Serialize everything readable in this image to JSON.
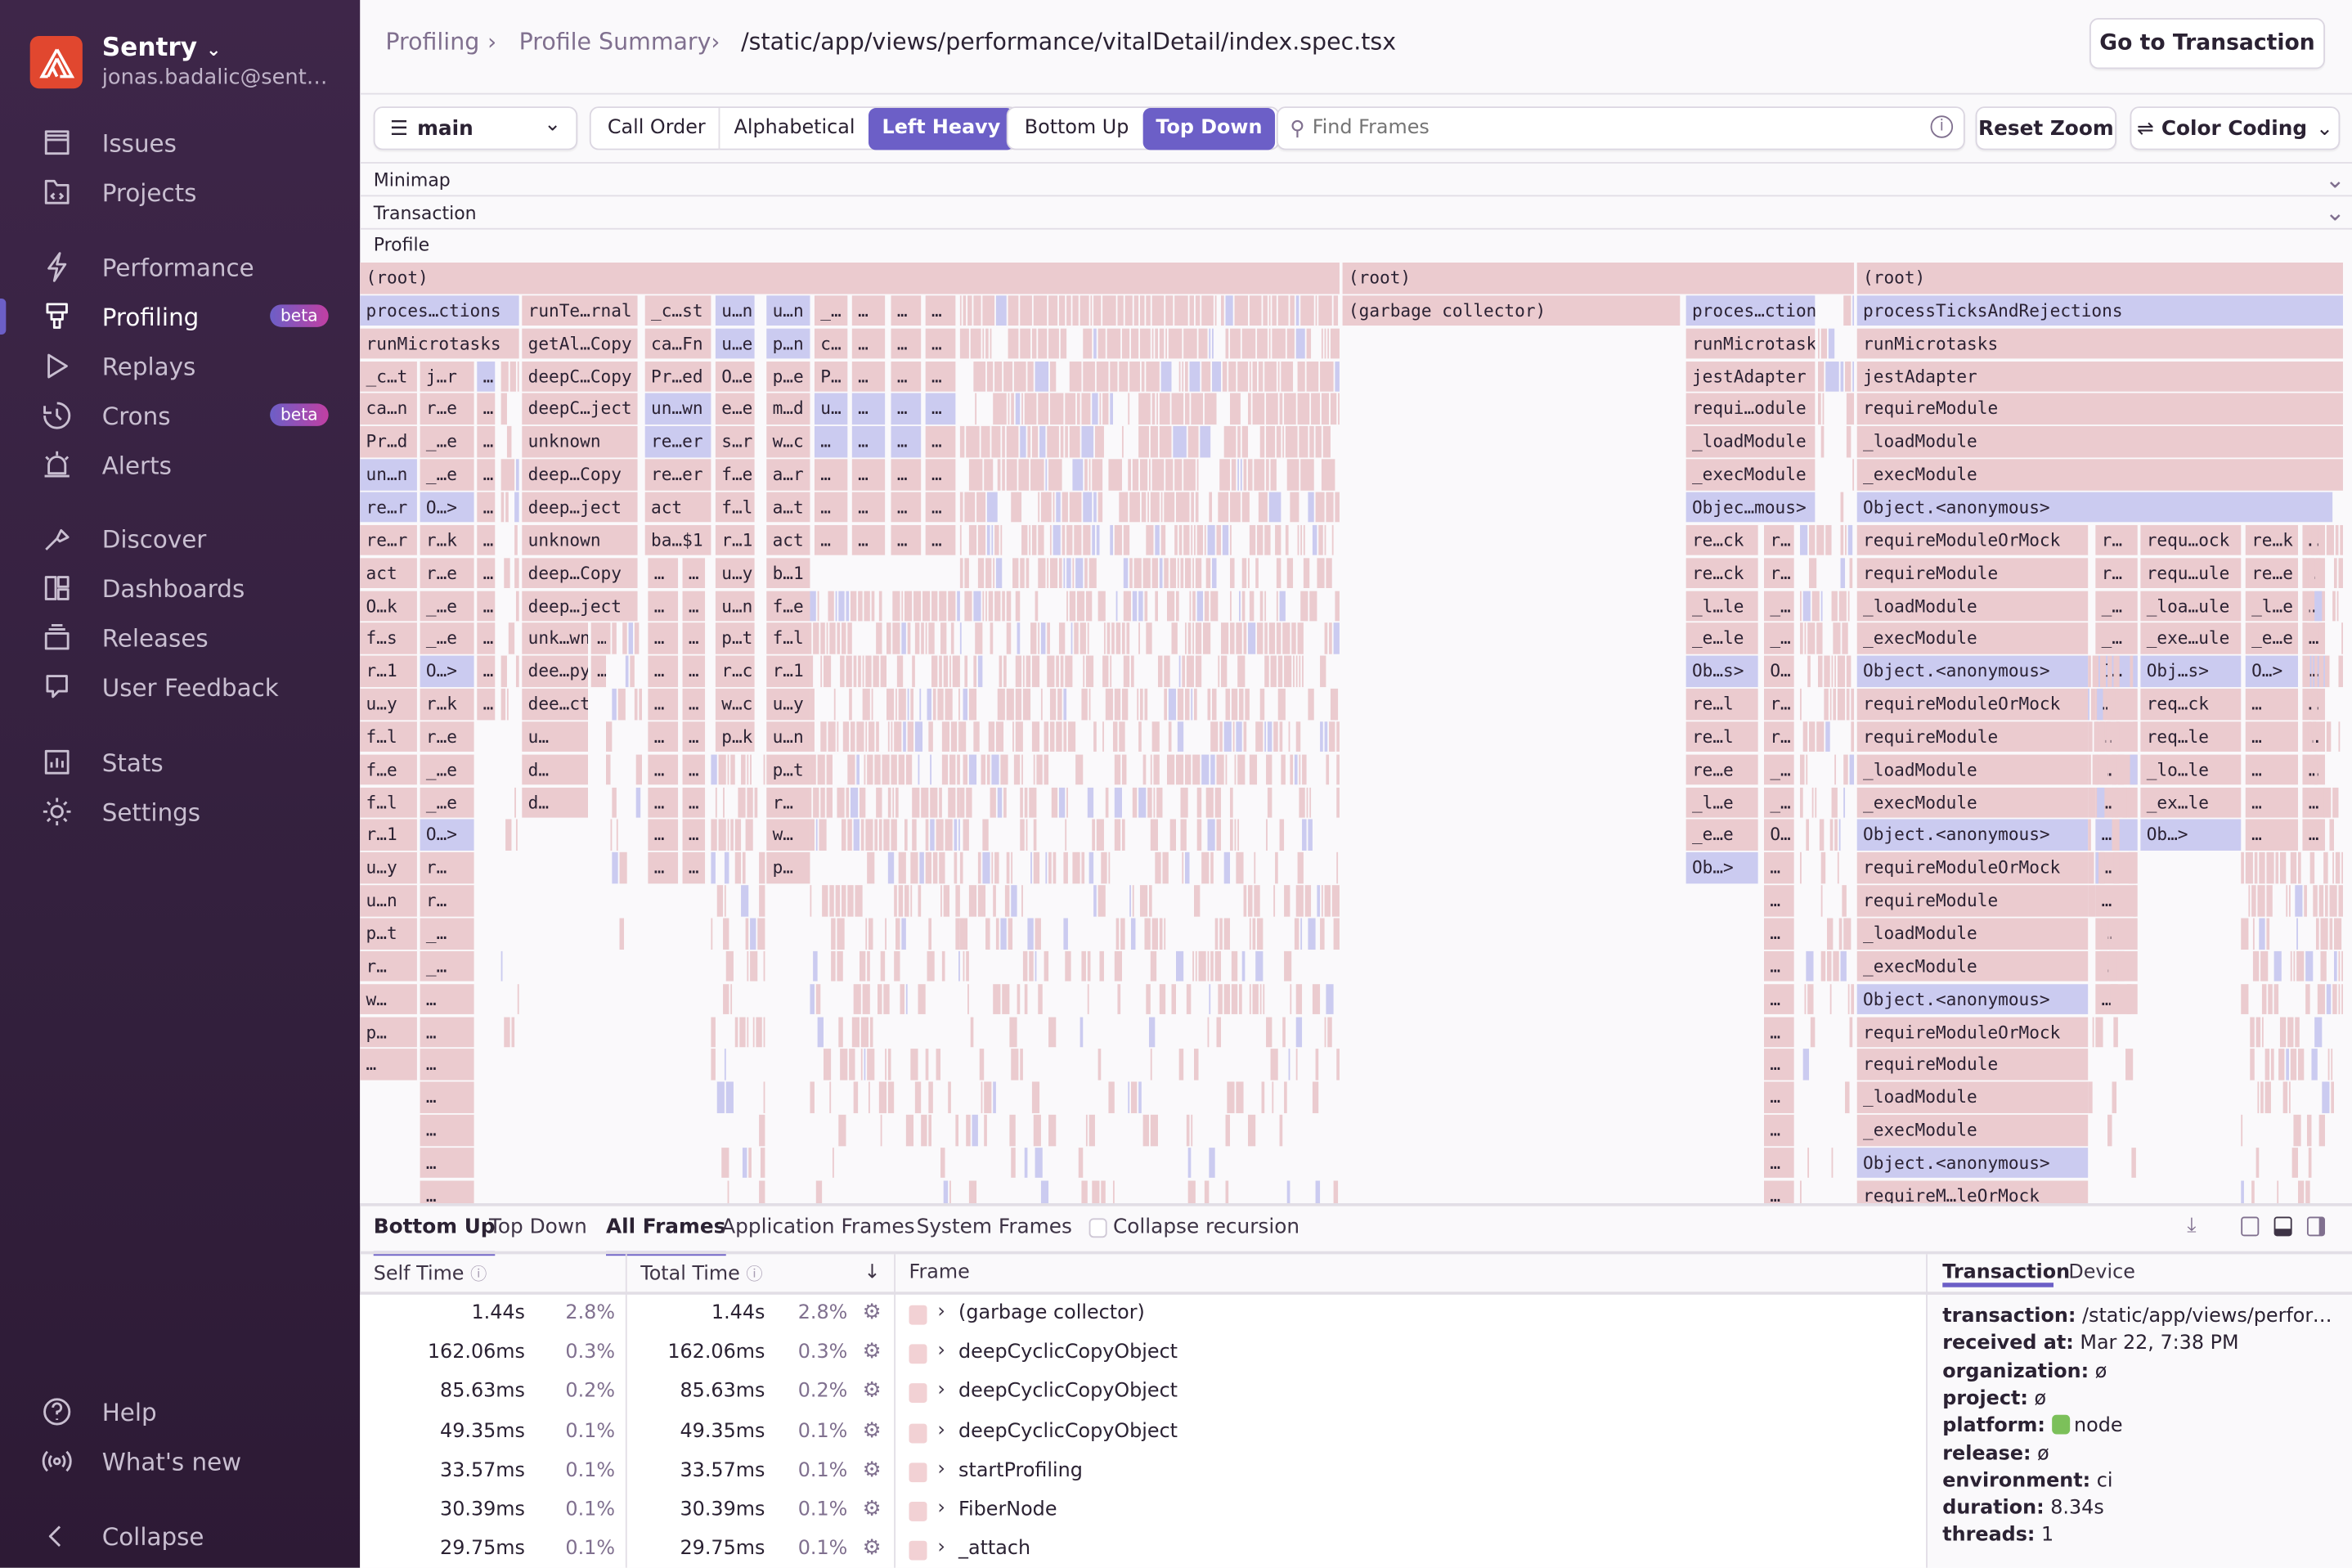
{
  "sidebar": {
    "org_name": "Sentry",
    "user_email": "jonas.badalic@sent…",
    "items": [
      {
        "label": "Issues",
        "icon": "issues-icon"
      },
      {
        "label": "Projects",
        "icon": "projects-icon"
      },
      {
        "label": "Performance",
        "icon": "performance-icon"
      },
      {
        "label": "Profiling",
        "icon": "profiling-icon",
        "badge": "beta",
        "active": true
      },
      {
        "label": "Replays",
        "icon": "replays-icon"
      },
      {
        "label": "Crons",
        "icon": "crons-icon",
        "badge": "beta"
      },
      {
        "label": "Alerts",
        "icon": "alerts-icon"
      },
      {
        "label": "Discover",
        "icon": "discover-icon"
      },
      {
        "label": "Dashboards",
        "icon": "dashboards-icon"
      },
      {
        "label": "Releases",
        "icon": "releases-icon"
      },
      {
        "label": "User Feedback",
        "icon": "user-feedback-icon"
      },
      {
        "label": "Stats",
        "icon": "stats-icon"
      },
      {
        "label": "Settings",
        "icon": "settings-icon"
      }
    ],
    "footer": [
      {
        "label": "Help",
        "icon": "help-icon"
      },
      {
        "label": "What's new",
        "icon": "broadcast-icon"
      },
      {
        "label": "Collapse",
        "icon": "collapse-icon"
      }
    ]
  },
  "header": {
    "breadcrumbs": [
      "Profiling",
      "Profile Summary",
      "/static/app/views/performance/vitalDetail/index.spec.tsx"
    ],
    "go_to_transaction": "Go to Transaction"
  },
  "toolbar": {
    "thread": "main",
    "sort_options": [
      "Call Order",
      "Alphabetical",
      "Left Heavy"
    ],
    "sort_selected": "Left Heavy",
    "view_options": [
      "Bottom Up",
      "Top Down"
    ],
    "view_selected": "Top Down",
    "search_placeholder": "Find Frames",
    "reset_zoom": "Reset Zoom",
    "color_coding": "Color Coding"
  },
  "sections": {
    "minimap": "Minimap",
    "transaction": "Transaction",
    "profile": "Profile"
  },
  "colors": {
    "accent": "#6c5fc7",
    "frame_system": "#ebcbcf",
    "frame_application": "#cbcbf0",
    "sidebar": "#3e2649"
  },
  "flamegraph": {
    "roots": [
      "(root)",
      "(root)",
      "(root)"
    ],
    "columns": [
      {
        "labels": [
          "proces…ctions",
          "runMicrotasks"
        ],
        "blue": [
          0
        ]
      },
      {
        "labels": [
          "_c…t",
          "ca…n",
          "Pr…d",
          "un…n",
          "re…r",
          "re…r",
          "act",
          "O…k",
          "f…s",
          "r…1",
          "u…y",
          "f…l",
          "f…e",
          "f…l",
          "r…1",
          "u…y",
          "u…n",
          "p…t",
          "r…",
          "w…",
          "p…",
          "…"
        ],
        "blue": [
          3,
          4
        ]
      },
      {
        "labels": [
          "j…r",
          "r…e",
          "_…e",
          "_…e",
          "O…>",
          "r…k",
          "r…e",
          "_…e",
          "_…e",
          "O…>",
          "r…k",
          "r…e",
          "_…e",
          "_…e",
          "O…>",
          "r…",
          "r…",
          "_…",
          "_…",
          "…",
          "…",
          "…",
          "…",
          "…",
          "…",
          "…",
          "…"
        ],
        "blue": [
          4,
          9,
          14
        ]
      },
      {
        "labels": [
          "…",
          "…",
          "…",
          "…",
          "…",
          "…",
          "…",
          "…",
          "…",
          "…",
          "…"
        ],
        "blue": [
          0
        ]
      },
      {
        "labels": [
          "runTe…rnal",
          "getAl…Copy",
          "deepC…Copy",
          "deepC…ject",
          "unknown",
          "deep…Copy",
          "deep…ject",
          "unknown",
          "deep…Copy",
          "deep…ject"
        ],
        "blue": []
      },
      {
        "labels": [
          "unk…wn",
          "dee…py",
          "dee…ct",
          "u…",
          "d…",
          "d…"
        ],
        "blue": []
      },
      {
        "labels": [
          "…",
          "…"
        ],
        "blue": []
      },
      {
        "labels": [
          "_c…st",
          "ca…Fn",
          "Pr…ed",
          "un…wn",
          "re…er",
          "re…er",
          "act",
          "ba…$1"
        ],
        "blue": [
          3,
          4
        ]
      },
      {
        "labels": [
          "…",
          "…",
          "…",
          "…",
          "…",
          "…",
          "…",
          "…",
          "…",
          "…"
        ],
        "blue": []
      },
      {
        "labels": [
          "…",
          "…",
          "…",
          "…",
          "…",
          "…",
          "…",
          "…",
          "…",
          "…"
        ],
        "blue": []
      },
      {
        "labels": [
          "u…n",
          "u…e",
          "O…e",
          "e…e",
          "s…r",
          "f…e",
          "f…l",
          "r…1",
          "u…y",
          "u…n",
          "p…t",
          "r…c",
          "w…c",
          "p…k"
        ],
        "blue": [
          0,
          1
        ]
      },
      {
        "labels": [
          "u…n",
          "p…n",
          "p…e",
          "m…d",
          "w…c",
          "a…r",
          "a…t",
          "act",
          "b…1",
          "f…e",
          "f…l",
          "r…1",
          "u…y",
          "u…n",
          "p…t",
          "r…",
          "w…",
          "p…"
        ],
        "blue": [
          0,
          1
        ]
      },
      {
        "labels": [
          "_…",
          "c…",
          "P…",
          "u…",
          "…",
          "…",
          "…",
          "…"
        ],
        "blue": [
          3,
          4
        ]
      },
      {
        "labels": [
          "…",
          "…",
          "…",
          "…",
          "…",
          "…",
          "…",
          "…"
        ],
        "blue": [
          3,
          4
        ]
      },
      {
        "labels": [
          "…",
          "…",
          "…",
          "…",
          "…",
          "…",
          "…",
          "…"
        ],
        "blue": [
          3,
          4
        ]
      },
      {
        "labels": [
          "…",
          "…",
          "…",
          "…",
          "…",
          "…",
          "…",
          "…"
        ],
        "blue": [
          3
        ]
      },
      {
        "labels": [
          "(garbage collector)"
        ],
        "blue": []
      },
      {
        "labels": [
          "proces…ctions",
          "runMicrotasks",
          "jestAdapter",
          "requi…odule",
          "_loadModule",
          "_execModule",
          "Objec…mous>"
        ],
        "blue": [
          0,
          6
        ]
      },
      {
        "labels": [
          "re…ck",
          "re…ck",
          "_l…le",
          "_e…le",
          "Ob…s>",
          "re…l",
          "re…l",
          "re…e",
          "_l…e",
          "_e…e",
          "Ob…>"
        ],
        "blue": [
          4,
          10
        ]
      },
      {
        "labels": [
          "r…",
          "r…",
          "_…",
          "_…",
          "O…",
          "r…",
          "r…",
          "_…",
          "_…",
          "O…",
          "…",
          "…",
          "…",
          "…",
          "…",
          "…",
          "…",
          "…",
          "…",
          "…",
          "…"
        ],
        "blue": []
      },
      {
        "labels": [
          "processTicksAndRejections",
          "runMicrotasks",
          "jestAdapter",
          "requireModule",
          "_loadModule",
          "_execModule",
          "Object.<anonymous>"
        ],
        "blue": [
          0,
          6
        ]
      },
      {
        "labels": [
          "requireModuleOrMock",
          "requireModule",
          "_loadModule",
          "_execModule",
          "Object.<anonymous>",
          "requireModuleOrMock",
          "requireModule",
          "_loadModule",
          "_execModule",
          "Object.<anonymous>",
          "requireModuleOrMock",
          "requireModule",
          "_loadModule",
          "_execModule",
          "Object.<anonymous>",
          "requireModuleOrMock",
          "requireModule",
          "_loadModule",
          "_execModule",
          "Object.<anonymous>",
          "requireM…leOrMock"
        ],
        "blue": [
          4,
          9,
          14,
          19
        ]
      },
      {
        "labels": [
          "r…",
          "r…",
          "_…",
          "_…",
          "O…",
          "…",
          "…",
          "…",
          "…",
          "…",
          "…",
          "…",
          "…",
          "…",
          "…"
        ],
        "blue": [
          4,
          9
        ]
      },
      {
        "labels": [
          "requ…ock",
          "requ…ule",
          "_loa…ule",
          "_exe…ule",
          "Obj…s>",
          "req…ck",
          "req…le",
          "_lo…le",
          "_ex…le",
          "Ob…>"
        ],
        "blue": [
          4,
          9
        ]
      },
      {
        "labels": [
          "re…k",
          "re…e",
          "_l…e",
          "_e…e",
          "O…>",
          "…",
          "…",
          "…",
          "…",
          "…"
        ],
        "blue": [
          4
        ]
      },
      {
        "labels": [
          "…",
          "…",
          "…",
          "…",
          "…",
          "…",
          "…",
          "…",
          "…",
          "…"
        ],
        "blue": [
          4
        ]
      }
    ]
  },
  "bottom": {
    "view_tabs": [
      "Bottom Up",
      "Top Down"
    ],
    "view_selected": "Bottom Up",
    "frame_tabs": [
      "All Frames",
      "Application Frames",
      "System Frames"
    ],
    "frame_selected": "All Frames",
    "collapse_recursion": "Collapse recursion",
    "collapse_recursion_checked": false,
    "columns": {
      "self_time": "Self Time",
      "total_time": "Total Time",
      "frame": "Frame"
    },
    "rows": [
      {
        "self": "1.44s",
        "self_pct": "2.8%",
        "total": "1.44s",
        "total_pct": "2.8%",
        "frame": "(garbage collector)"
      },
      {
        "self": "162.06ms",
        "self_pct": "0.3%",
        "total": "162.06ms",
        "total_pct": "0.3%",
        "frame": "deepCyclicCopyObject"
      },
      {
        "self": "85.63ms",
        "self_pct": "0.2%",
        "total": "85.63ms",
        "total_pct": "0.2%",
        "frame": "deepCyclicCopyObject"
      },
      {
        "self": "49.35ms",
        "self_pct": "0.1%",
        "total": "49.35ms",
        "total_pct": "0.1%",
        "frame": "deepCyclicCopyObject"
      },
      {
        "self": "33.57ms",
        "self_pct": "0.1%",
        "total": "33.57ms",
        "total_pct": "0.1%",
        "frame": "startProfiling"
      },
      {
        "self": "30.39ms",
        "self_pct": "0.1%",
        "total": "30.39ms",
        "total_pct": "0.1%",
        "frame": "FiberNode"
      },
      {
        "self": "29.75ms",
        "self_pct": "0.1%",
        "total": "29.75ms",
        "total_pct": "0.1%",
        "frame": "_attach"
      }
    ],
    "details": {
      "tabs": [
        "Transaction",
        "Device"
      ],
      "selected": "Transaction",
      "fields": [
        {
          "key": "transaction:",
          "value": "/static/app/views/performa…"
        },
        {
          "key": "received at:",
          "value": "Mar 22, 7:38 PM"
        },
        {
          "key": "organization:",
          "value": "ø"
        },
        {
          "key": "project:",
          "value": "ø"
        },
        {
          "key": "platform:",
          "value": "node",
          "icon": "node-icon"
        },
        {
          "key": "release:",
          "value": "ø"
        },
        {
          "key": "environment:",
          "value": "ci"
        },
        {
          "key": "duration:",
          "value": "8.34s"
        },
        {
          "key": "threads:",
          "value": "1"
        }
      ]
    }
  }
}
